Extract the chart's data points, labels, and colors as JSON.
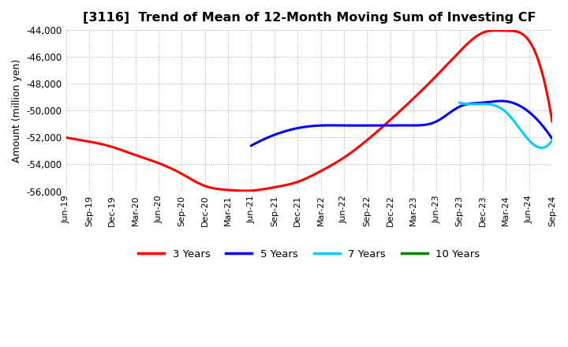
{
  "title": "[3116]  Trend of Mean of 12-Month Moving Sum of Investing CF",
  "ylabel": "Amount (million yen)",
  "ylim": [
    -56000,
    -44000
  ],
  "yticks": [
    -56000,
    -54000,
    -52000,
    -50000,
    -48000,
    -46000,
    -44000
  ],
  "background_color": "#ffffff",
  "grid_color": "#aaaaaa",
  "xtick_labels": [
    "Jun-19",
    "Sep-19",
    "Dec-19",
    "Mar-20",
    "Jun-20",
    "Sep-20",
    "Dec-20",
    "Mar-21",
    "Jun-21",
    "Sep-21",
    "Dec-21",
    "Mar-22",
    "Jun-22",
    "Sep-22",
    "Dec-22",
    "Mar-23",
    "Jun-23",
    "Sep-23",
    "Dec-23",
    "Mar-24",
    "Jun-24",
    "Sep-24"
  ],
  "series": {
    "3 Years": {
      "color": "#ff0000",
      "points": [
        [
          0,
          -52000
        ],
        [
          1,
          -52300
        ],
        [
          2,
          -52700
        ],
        [
          3,
          -53300
        ],
        [
          4,
          -53900
        ],
        [
          5,
          -54700
        ],
        [
          6,
          -55600
        ],
        [
          7,
          -55900
        ],
        [
          8,
          -55950
        ],
        [
          9,
          -55700
        ],
        [
          10,
          -55300
        ],
        [
          11,
          -54500
        ],
        [
          12,
          -53500
        ],
        [
          13,
          -52200
        ],
        [
          14,
          -50700
        ],
        [
          15,
          -49100
        ],
        [
          16,
          -47400
        ],
        [
          17,
          -45600
        ],
        [
          18,
          -44200
        ],
        [
          19,
          -44050
        ],
        [
          20,
          -44800
        ],
        [
          21,
          -50800
        ]
      ]
    },
    "5 Years": {
      "color": "#0000ff",
      "points": [
        [
          8,
          -52600
        ],
        [
          9,
          -51800
        ],
        [
          10,
          -51300
        ],
        [
          11,
          -51100
        ],
        [
          12,
          -51100
        ],
        [
          13,
          -51100
        ],
        [
          14,
          -51100
        ],
        [
          15,
          -51100
        ],
        [
          16,
          -50800
        ],
        [
          17,
          -49700
        ],
        [
          18,
          -49400
        ],
        [
          19,
          -49300
        ],
        [
          20,
          -50100
        ],
        [
          21,
          -52100
        ]
      ]
    },
    "7 Years": {
      "color": "#00ccff",
      "points": [
        [
          17,
          -49400
        ],
        [
          18,
          -49500
        ],
        [
          19,
          -50100
        ],
        [
          20,
          -52200
        ],
        [
          21,
          -52200
        ]
      ]
    },
    "10 Years": {
      "color": "#008000",
      "points": []
    }
  }
}
